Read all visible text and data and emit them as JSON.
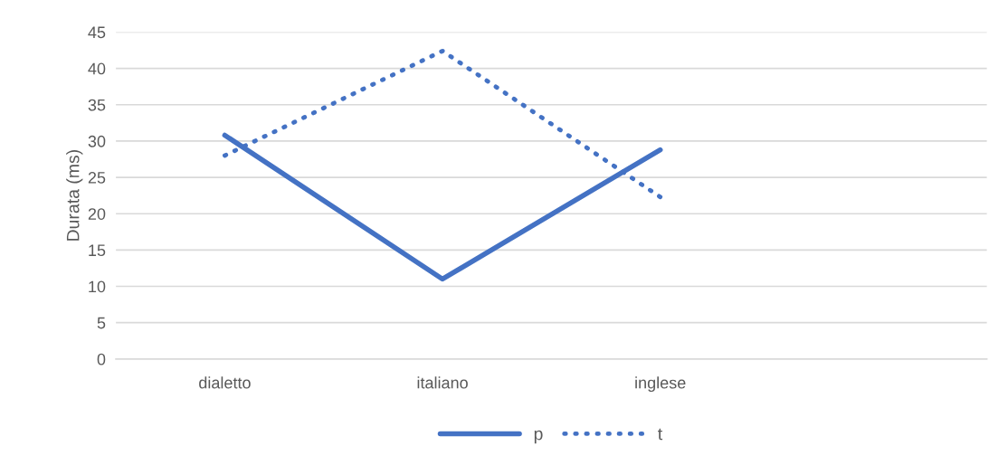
{
  "chart_data": {
    "type": "line",
    "ylabel": "Durata (ms)",
    "categories": [
      "dialetto",
      "italiano",
      "inglese",
      null
    ],
    "series": [
      {
        "name": "p",
        "color": "#4472c4",
        "line_style": "solid",
        "values": [
          30.8,
          11.0,
          28.8,
          null
        ]
      },
      {
        "name": "t",
        "color": "#4472c4",
        "line_style": "dotted",
        "values": [
          28.0,
          42.4,
          22.3,
          null
        ]
      }
    ],
    "ylim": [
      0,
      45
    ],
    "yticks": [
      0,
      5,
      10,
      15,
      20,
      25,
      30,
      35,
      40,
      45
    ],
    "grid": "y",
    "legend": "bottom",
    "marker": "none"
  }
}
